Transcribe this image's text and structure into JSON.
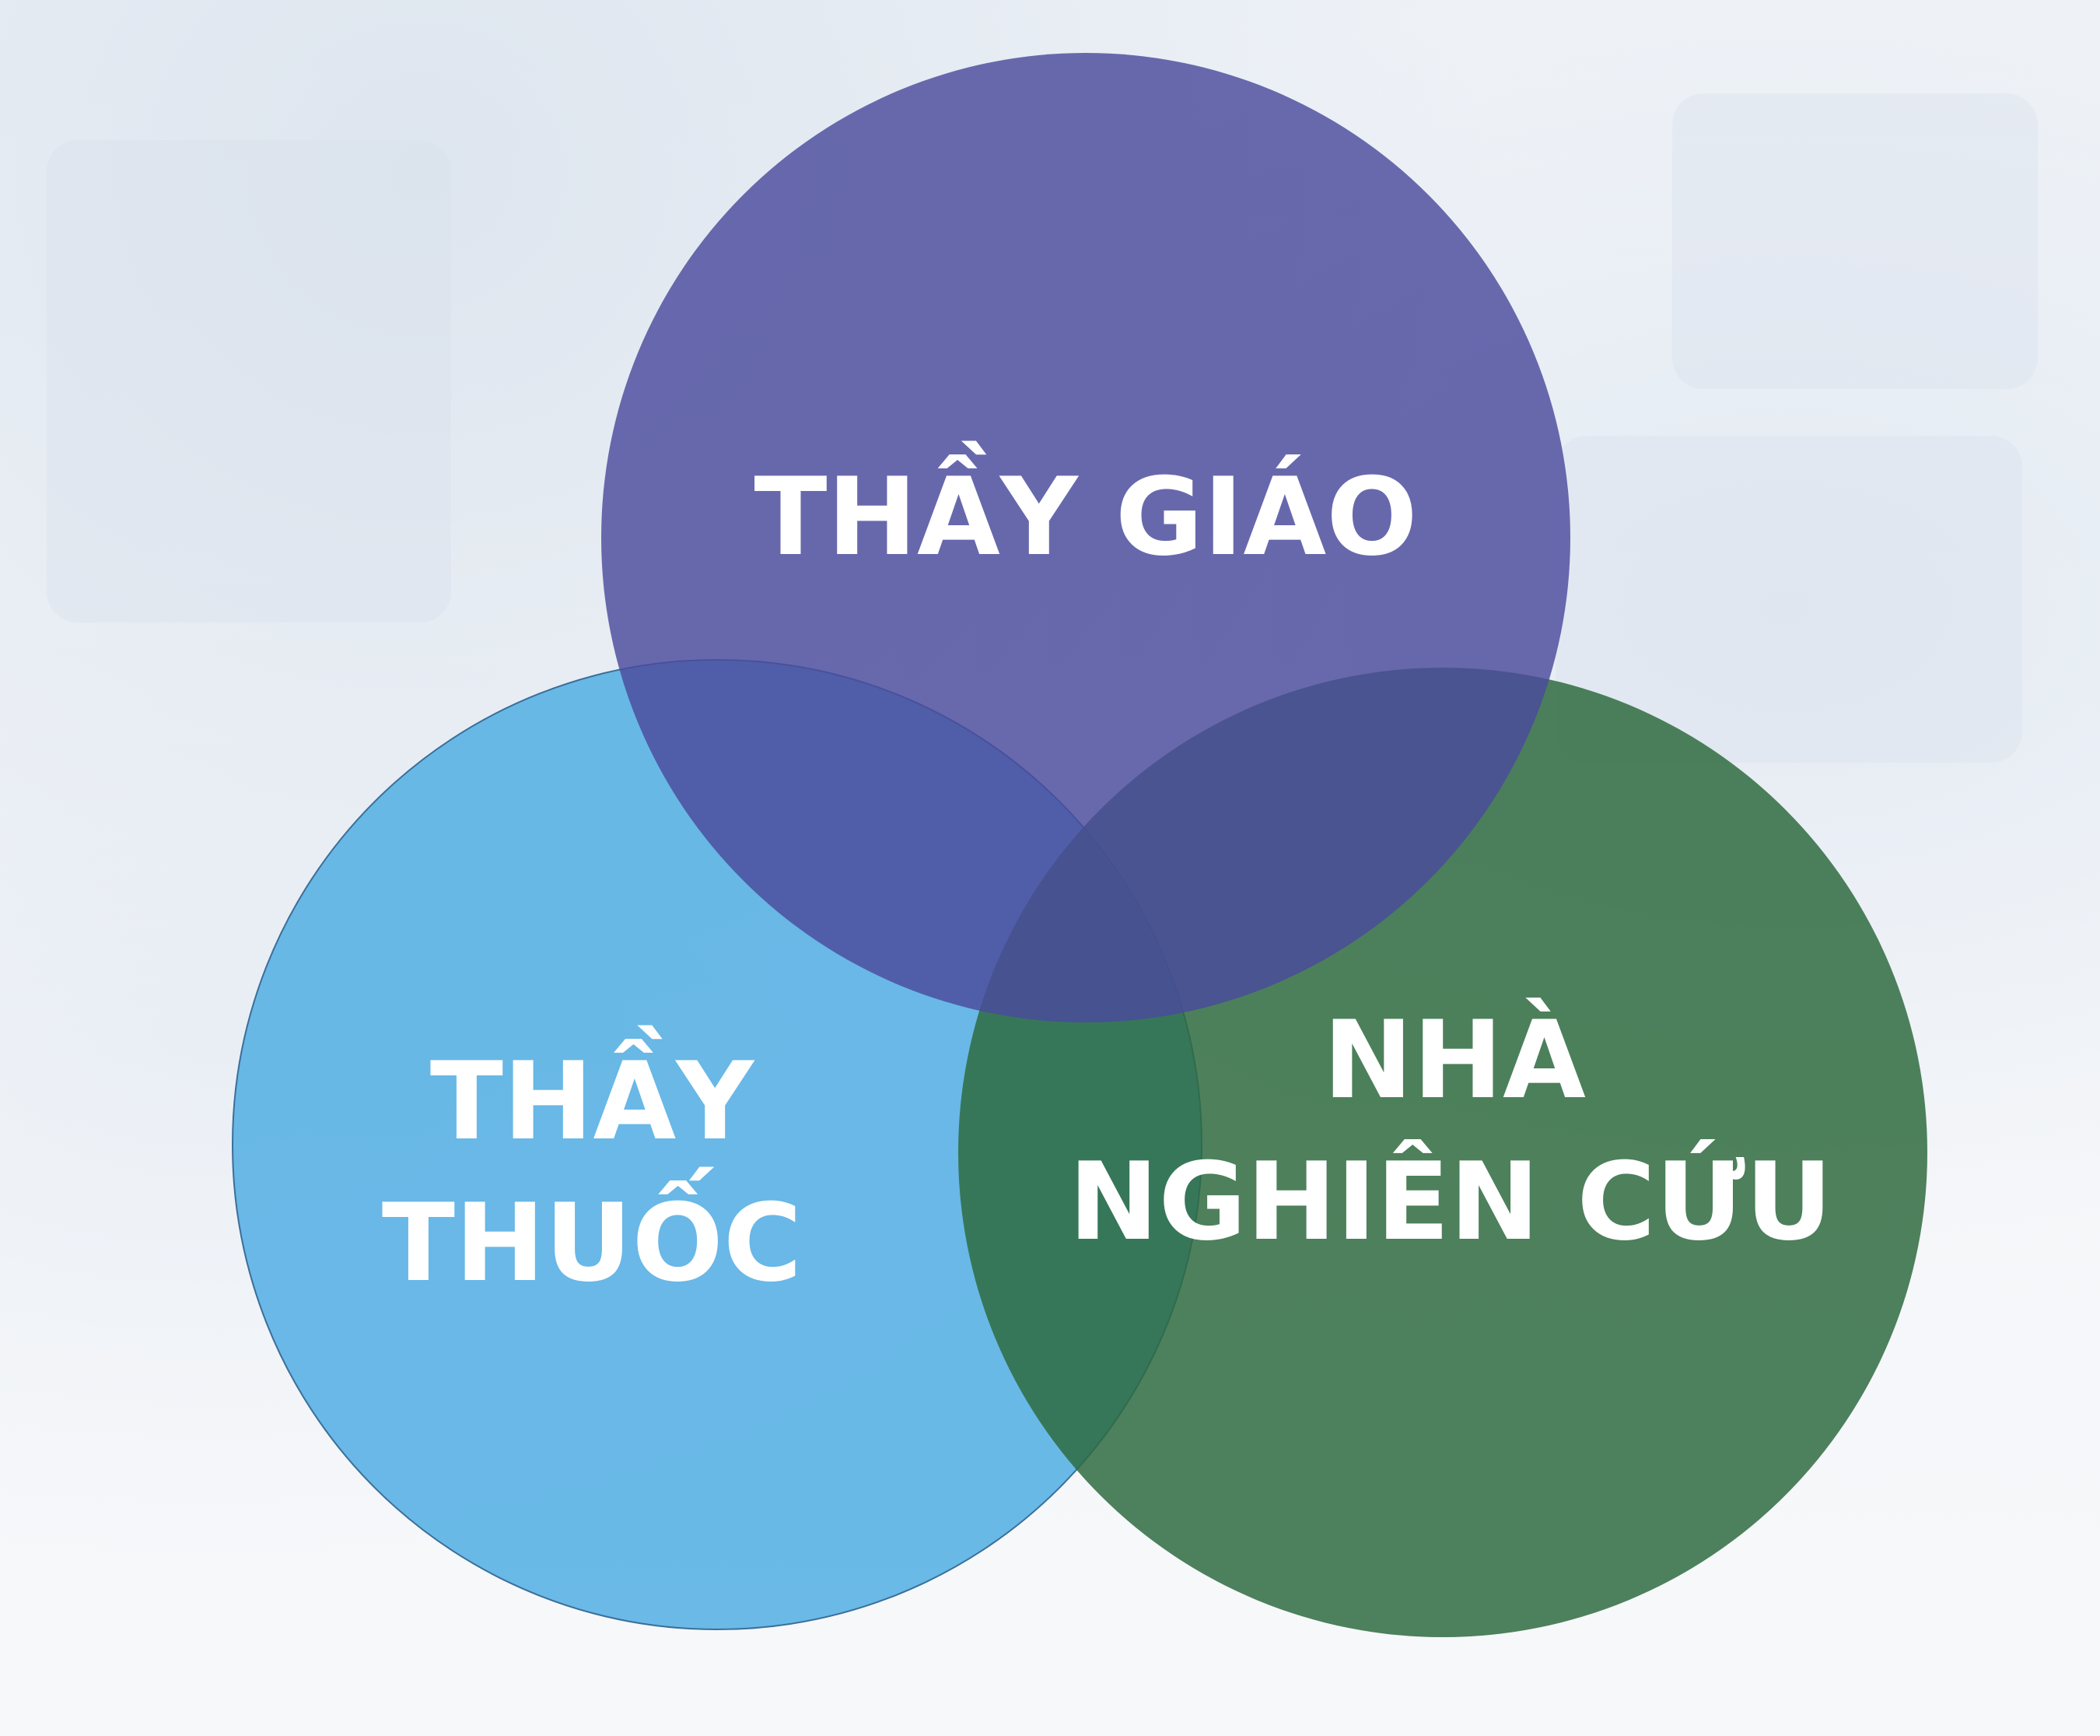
{
  "diagram": {
    "circles": [
      {
        "id": "teacher",
        "label_lines": [
          "THẦY GIÁO"
        ],
        "color": "#5a5ba6"
      },
      {
        "id": "doctor",
        "label_lines": [
          "THẦY",
          "THUỐC"
        ],
        "color": "#5ab1e4"
      },
      {
        "id": "researcher",
        "label_lines": [
          "NHÀ",
          "NGHIÊN CỨU"
        ],
        "color": "#2f6b3f"
      }
    ]
  }
}
